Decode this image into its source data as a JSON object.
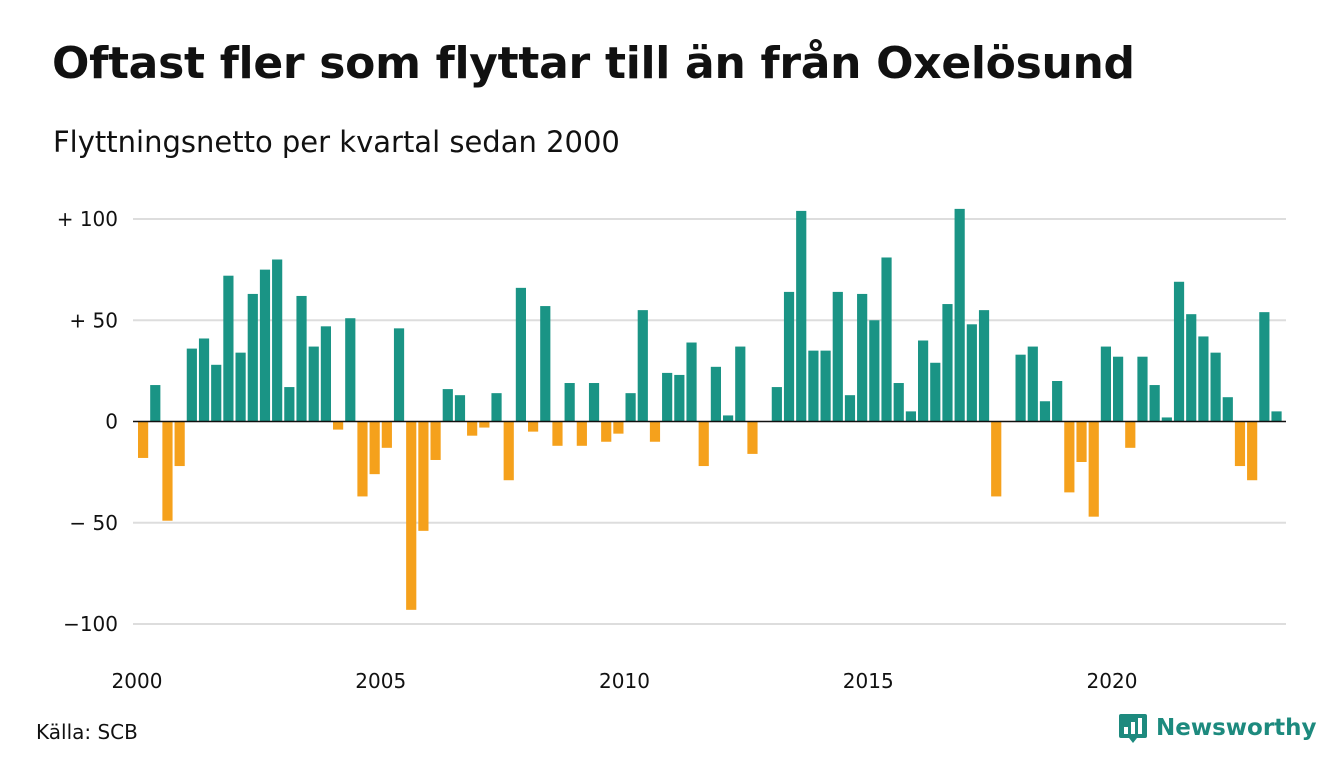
{
  "title": "Oftast fler som flyttar till än från Oxelösund",
  "subtitle": "Flyttningsnetto per kvartal sedan 2000",
  "source": "Källa: SCB",
  "brand": {
    "name": "Newsworthy",
    "icon": "newsworthy-logo-icon"
  },
  "colors": {
    "positive": "#1a9485",
    "negative": "#f5a11c",
    "grid": "#dddddd",
    "zero_line": "#111111"
  },
  "chart_data": {
    "type": "bar",
    "title": "Oftast fler som flyttar till än från Oxelösund",
    "subtitle": "Flyttningsnetto per kvartal sedan 2000",
    "xlabel": "",
    "ylabel": "",
    "x_start": "2000 Q1",
    "frequency": "quarterly",
    "ylim": [
      -110,
      106
    ],
    "xlim": [
      2000,
      2023.75
    ],
    "grid": true,
    "y_ticks": [
      {
        "value": 100,
        "label": "+ 100"
      },
      {
        "value": 50,
        "label": "+  50"
      },
      {
        "value": 0,
        "label": "0"
      },
      {
        "value": -50,
        "label": "− 50"
      },
      {
        "value": -100,
        "label": "−100"
      }
    ],
    "x_ticks": [
      {
        "value": 2000,
        "label": "2000"
      },
      {
        "value": 2005,
        "label": "2005"
      },
      {
        "value": 2010,
        "label": "2010"
      },
      {
        "value": 2015,
        "label": "2015"
      },
      {
        "value": 2020,
        "label": "2020"
      }
    ],
    "values": [
      -18,
      18,
      -49,
      -22,
      36,
      41,
      28,
      72,
      34,
      63,
      75,
      80,
      17,
      62,
      37,
      47,
      -4,
      51,
      -37,
      -26,
      -13,
      46,
      -93,
      -54,
      -19,
      16,
      13,
      -7,
      -3,
      14,
      -29,
      66,
      -5,
      57,
      -12,
      19,
      -12,
      19,
      -10,
      -6,
      14,
      55,
      -10,
      24,
      23,
      39,
      -22,
      27,
      3,
      37,
      -16,
      0,
      17,
      64,
      104,
      35,
      35,
      64,
      13,
      63,
      50,
      81,
      19,
      5,
      40,
      29,
      58,
      105,
      48,
      55,
      -37,
      0,
      33,
      37,
      10,
      20,
      -35,
      -20,
      -47,
      37,
      32,
      -13,
      32,
      18,
      2,
      69,
      53,
      42,
      34,
      12,
      -22,
      -29,
      54,
      5
    ]
  }
}
